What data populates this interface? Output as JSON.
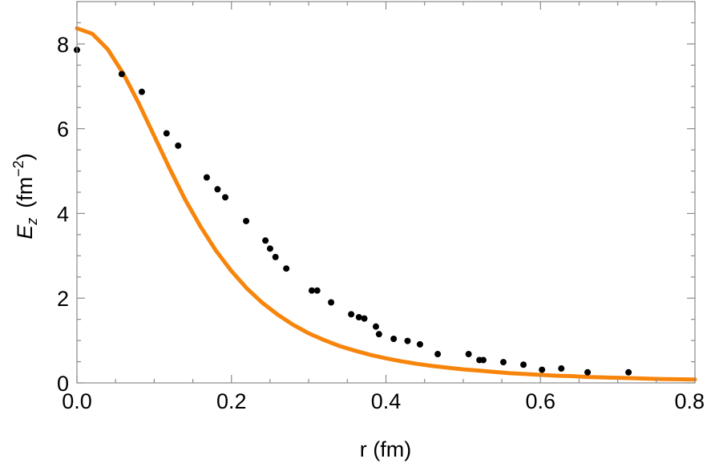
{
  "chart_data": {
    "type": "scatter",
    "title": "",
    "xlabel": "r (fm)",
    "ylabel": {
      "symbol": "E",
      "subscript": "z",
      "unit_open": "(fm",
      "unit_exponent": "−2",
      "unit_close": ")"
    },
    "xlim": [
      0,
      0.8
    ],
    "ylim": [
      0,
      9
    ],
    "xticks": [
      0.0,
      0.2,
      0.4,
      0.6,
      0.8
    ],
    "xtick_labels": [
      "0.0",
      "0.2",
      "0.4",
      "0.6",
      "0.8"
    ],
    "yticks": [
      0,
      2,
      4,
      6,
      8
    ],
    "ytick_labels": [
      "0",
      "2",
      "4",
      "6",
      "8"
    ],
    "grid": false,
    "legend": "none",
    "series": [
      {
        "kind": "points",
        "color": "#000000",
        "points": [
          [
            0.0,
            7.86
          ],
          [
            0.058,
            7.29
          ],
          [
            0.084,
            6.87
          ],
          [
            0.116,
            5.89
          ],
          [
            0.131,
            5.6
          ],
          [
            0.168,
            4.85
          ],
          [
            0.182,
            4.57
          ],
          [
            0.192,
            4.38
          ],
          [
            0.219,
            3.82
          ],
          [
            0.244,
            3.36
          ],
          [
            0.25,
            3.17
          ],
          [
            0.257,
            2.97
          ],
          [
            0.271,
            2.7
          ],
          [
            0.304,
            2.18
          ],
          [
            0.311,
            2.18
          ],
          [
            0.329,
            1.9
          ],
          [
            0.355,
            1.62
          ],
          [
            0.365,
            1.55
          ],
          [
            0.372,
            1.52
          ],
          [
            0.387,
            1.33
          ],
          [
            0.391,
            1.15
          ],
          [
            0.41,
            1.04
          ],
          [
            0.428,
            0.99
          ],
          [
            0.444,
            0.91
          ],
          [
            0.467,
            0.68
          ],
          [
            0.507,
            0.68
          ],
          [
            0.521,
            0.54
          ],
          [
            0.526,
            0.54
          ],
          [
            0.552,
            0.49
          ],
          [
            0.578,
            0.43
          ],
          [
            0.602,
            0.31
          ],
          [
            0.627,
            0.34
          ],
          [
            0.661,
            0.25
          ],
          [
            0.714,
            0.25
          ]
        ]
      },
      {
        "kind": "curve",
        "color": "#f7850c",
        "points": [
          [
            0.0,
            8.37
          ],
          [
            0.02,
            8.24
          ],
          [
            0.04,
            7.87
          ],
          [
            0.06,
            7.3
          ],
          [
            0.08,
            6.6
          ],
          [
            0.1,
            5.83
          ],
          [
            0.12,
            5.06
          ],
          [
            0.14,
            4.33
          ],
          [
            0.16,
            3.69
          ],
          [
            0.18,
            3.12
          ],
          [
            0.2,
            2.64
          ],
          [
            0.22,
            2.23
          ],
          [
            0.24,
            1.89
          ],
          [
            0.26,
            1.61
          ],
          [
            0.28,
            1.37
          ],
          [
            0.3,
            1.17
          ],
          [
            0.32,
            1.01
          ],
          [
            0.34,
            0.87
          ],
          [
            0.36,
            0.76
          ],
          [
            0.38,
            0.66
          ],
          [
            0.4,
            0.58
          ],
          [
            0.42,
            0.51
          ],
          [
            0.44,
            0.45
          ],
          [
            0.46,
            0.4
          ],
          [
            0.48,
            0.36
          ],
          [
            0.5,
            0.32
          ],
          [
            0.52,
            0.29
          ],
          [
            0.54,
            0.26
          ],
          [
            0.56,
            0.23
          ],
          [
            0.58,
            0.21
          ],
          [
            0.6,
            0.19
          ],
          [
            0.62,
            0.17
          ],
          [
            0.64,
            0.16
          ],
          [
            0.66,
            0.14
          ],
          [
            0.68,
            0.13
          ],
          [
            0.7,
            0.12
          ],
          [
            0.72,
            0.11
          ],
          [
            0.74,
            0.1
          ],
          [
            0.76,
            0.09
          ],
          [
            0.78,
            0.085
          ],
          [
            0.8,
            0.08
          ]
        ]
      }
    ]
  }
}
